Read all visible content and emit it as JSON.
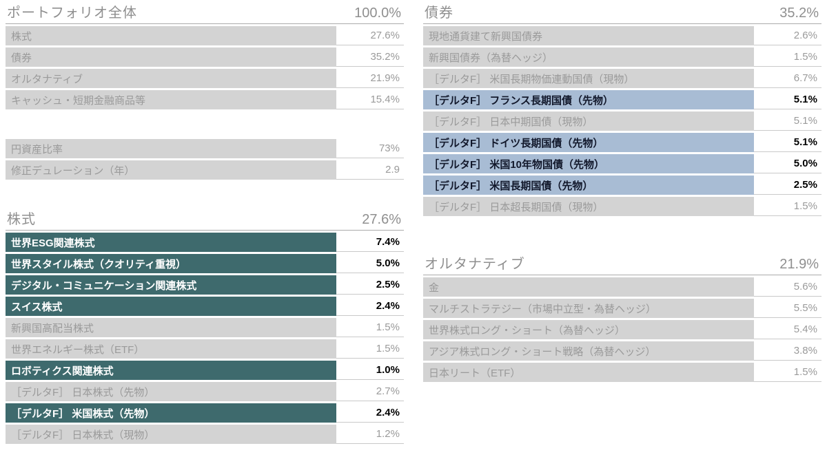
{
  "colors": {
    "highlight_teal": "#3e6a6d",
    "highlight_blue": "#a8bcd4",
    "row_gray": "#d3d3d3",
    "muted_text": "#9a9a9a",
    "header_text": "#8f8f8f"
  },
  "columns": [
    {
      "name": "left",
      "sections": [
        {
          "title": "ポートフォリオ全体",
          "total": "100.0%",
          "gap_before": 0,
          "rows": [
            {
              "label": "株式",
              "value": "27.6%",
              "style": "normal"
            },
            {
              "label": "債券",
              "value": "35.2%",
              "style": "normal"
            },
            {
              "label": "オルタナティブ",
              "value": "21.9%",
              "style": "normal"
            },
            {
              "label": "キャッシュ・短期金融商品等",
              "value": "15.4%",
              "style": "normal"
            }
          ]
        },
        {
          "title": null,
          "total": null,
          "gap_before": 40,
          "rows": [
            {
              "label": "円資産比率",
              "value": "73%",
              "style": "normal"
            },
            {
              "label": "修正デュレーション（年）",
              "value": "2.9",
              "style": "normal"
            }
          ]
        },
        {
          "title": "株式",
          "total": "27.6%",
          "gap_before": 40,
          "rows": [
            {
              "label": "世界ESG関連株式",
              "value": "7.4%",
              "style": "teal"
            },
            {
              "label": "世界スタイル株式（クオリティ重視）",
              "value": "5.0%",
              "style": "teal"
            },
            {
              "label": "デジタル・コミュニケーション関連株式",
              "value": "2.5%",
              "style": "teal"
            },
            {
              "label": "スイス株式",
              "value": "2.4%",
              "style": "teal"
            },
            {
              "label": "新興国高配当株式",
              "value": "1.5%",
              "style": "normal"
            },
            {
              "label": "世界エネルギー株式（ETF）",
              "value": "1.5%",
              "style": "normal"
            },
            {
              "label": "ロボティクス関連株式",
              "value": "1.0%",
              "style": "teal"
            },
            {
              "label": "［デルタF］ 日本株式（先物）",
              "value": "2.7%",
              "style": "normal"
            },
            {
              "label": "［デルタF］ 米国株式（先物）",
              "value": "2.4%",
              "style": "teal"
            },
            {
              "label": "［デルタF］ 日本株式（現物）",
              "value": "1.2%",
              "style": "normal"
            }
          ]
        }
      ]
    },
    {
      "name": "right",
      "sections": [
        {
          "title": "債券",
          "total": "35.2%",
          "gap_before": 0,
          "rows": [
            {
              "label": "現地通貨建て新興国債券",
              "value": "2.6%",
              "style": "normal"
            },
            {
              "label": "新興国債券（為替ヘッジ）",
              "value": "1.5%",
              "style": "normal"
            },
            {
              "label": "［デルタF］ 米国長期物価連動国債（現物）",
              "value": "6.7%",
              "style": "normal"
            },
            {
              "label": "［デルタF］ フランス長期国債（先物）",
              "value": "5.1%",
              "style": "blue"
            },
            {
              "label": "［デルタF］ 日本中期国債（現物）",
              "value": "5.1%",
              "style": "normal"
            },
            {
              "label": "［デルタF］ ドイツ長期国債（先物）",
              "value": "5.1%",
              "style": "blue"
            },
            {
              "label": "［デルタF］ 米国10年物国債（先物）",
              "value": "5.0%",
              "style": "blue"
            },
            {
              "label": "［デルタF］ 米国長期国債（先物）",
              "value": "2.5%",
              "style": "blue"
            },
            {
              "label": "［デルタF］ 日本超長期国債（現物）",
              "value": "1.5%",
              "style": "normal"
            }
          ]
        },
        {
          "title": "オルタナティブ",
          "total": "21.9%",
          "gap_before": 52,
          "rows": [
            {
              "label": "金",
              "value": "5.6%",
              "style": "normal"
            },
            {
              "label": "マルチストラテジー（市場中立型・為替ヘッジ）",
              "value": "5.5%",
              "style": "normal"
            },
            {
              "label": "世界株式ロング・ショート（為替ヘッジ）",
              "value": "5.4%",
              "style": "normal"
            },
            {
              "label": "アジア株式ロング・ショート戦略（為替ヘッジ）",
              "value": "3.8%",
              "style": "normal"
            },
            {
              "label": "日本リート（ETF）",
              "value": "1.5%",
              "style": "normal"
            }
          ]
        }
      ]
    }
  ]
}
